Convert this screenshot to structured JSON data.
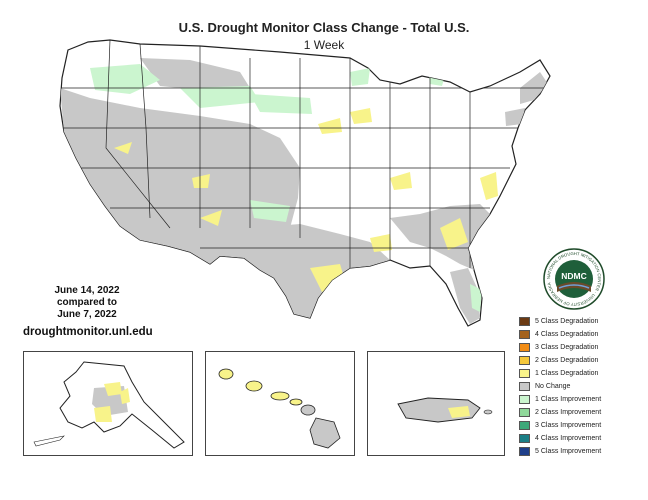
{
  "title": "U.S. Drought Monitor Class Change - Total U.S.",
  "subtitle": "1 Week",
  "date_lines": [
    "June 14, 2022",
    "compared to",
    "June 7, 2022"
  ],
  "website": "droughtmonitor.unl.edu",
  "logo": {
    "text": "NDMC",
    "ring_text": "NATIONAL DROUGHT MITIGATION CENTER · UNIVERSITY OF NEBRASKA"
  },
  "legend": [
    {
      "label": "5 Class Degradation",
      "color": "#6b3a13"
    },
    {
      "label": "4 Class Degradation",
      "color": "#a3621d"
    },
    {
      "label": "3 Class Degradation",
      "color": "#f28c14"
    },
    {
      "label": "2 Class Degradation",
      "color": "#f5c83c"
    },
    {
      "label": "1 Class Degradation",
      "color": "#f8f38a"
    },
    {
      "label": "No Change",
      "color": "#c8c8c8"
    },
    {
      "label": "1 Class Improvement",
      "color": "#cbf5cf"
    },
    {
      "label": "2 Class Improvement",
      "color": "#8fd89a"
    },
    {
      "label": "3 Class Improvement",
      "color": "#3ea87a"
    },
    {
      "label": "4 Class Improvement",
      "color": "#1b7f86"
    },
    {
      "label": "5 Class Improvement",
      "color": "#1e3f8a"
    }
  ],
  "colors": {
    "no_change": "#c8c8c8",
    "degradation_1": "#f8f38a",
    "improvement_1": "#cbf5cf",
    "improvement_2": "#8fd89a",
    "boundary": "#222222"
  },
  "insets": [
    "Alaska",
    "Hawaii",
    "Puerto Rico"
  ]
}
